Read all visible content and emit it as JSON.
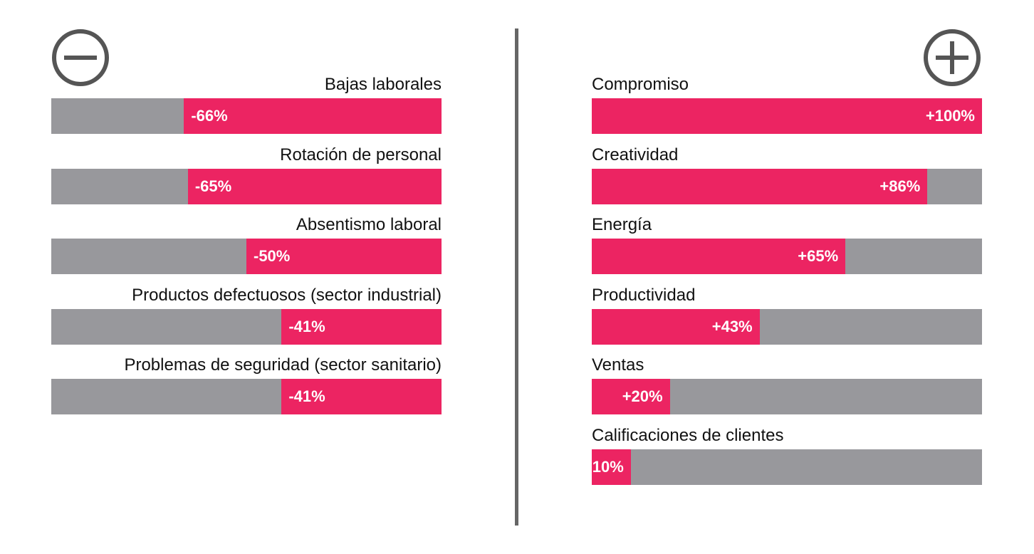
{
  "colors": {
    "accent": "#ec2462",
    "track": "#98989c",
    "divider": "#666666",
    "icon": "#555555"
  },
  "icons": {
    "left": "minus-circle-icon",
    "right": "plus-circle-icon"
  },
  "chart_data": [
    {
      "type": "bar",
      "orientation": "horizontal",
      "direction": "negative",
      "categories": [
        "Bajas laborales",
        "Rotación de personal",
        "Absentismo laboral",
        "Productos defectuosos (sector industrial)",
        "Problemas de seguridad (sector sanitario)"
      ],
      "values": [
        -66,
        -65,
        -50,
        -41,
        -41
      ],
      "value_labels": [
        "-66%",
        "-65%",
        "-50%",
        "-41%",
        "-41%"
      ],
      "xlim": [
        -100,
        0
      ]
    },
    {
      "type": "bar",
      "orientation": "horizontal",
      "direction": "positive",
      "categories": [
        "Compromiso",
        "Creatividad",
        "Energía",
        "Productividad",
        "Ventas",
        "Calificaciones de clientes"
      ],
      "values": [
        100,
        86,
        65,
        43,
        20,
        10
      ],
      "value_labels": [
        "+100%",
        "+86%",
        "+65%",
        "+43%",
        "+20%",
        "+10%"
      ],
      "xlim": [
        0,
        100
      ]
    }
  ]
}
